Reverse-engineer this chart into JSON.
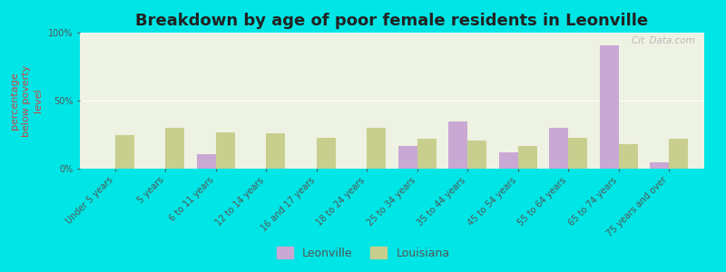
{
  "title": "Breakdown by age of poor female residents in Leonville",
  "ylabel": "percentage\nbelow poverty\nlevel",
  "categories": [
    "Under 5 years",
    "5 years",
    "6 to 11 years",
    "12 to 14 years",
    "16 and 17 years",
    "18 to 24 years",
    "25 to 34 years",
    "35 to 44 years",
    "45 to 54 years",
    "55 to 64 years",
    "65 to 74 years",
    "75 years and over"
  ],
  "leonville": [
    0,
    0,
    11,
    0,
    0,
    0,
    17,
    35,
    12,
    30,
    91,
    5
  ],
  "louisiana": [
    25,
    30,
    27,
    26,
    23,
    30,
    22,
    21,
    17,
    23,
    18,
    22
  ],
  "leonville_color": "#c9a8d4",
  "louisiana_color": "#c8cf8e",
  "background_color": "#00e5e5",
  "plot_bg": "#eef2e2",
  "ylim": [
    0,
    100
  ],
  "yticks": [
    0,
    50,
    100
  ],
  "ytick_labels": [
    "0%",
    "50%",
    "100%"
  ],
  "title_fontsize": 13,
  "axis_label_fontsize": 8,
  "tick_fontsize": 7,
  "bar_width": 0.38,
  "watermark": "Cit Data.com"
}
